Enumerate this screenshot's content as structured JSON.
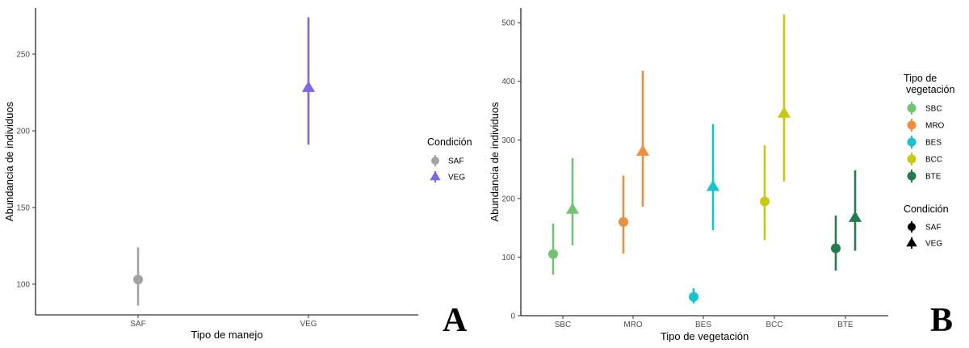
{
  "chart_data": [
    {
      "id": "A",
      "type": "pointrange",
      "panel_label": "A",
      "xlabel": "Tipo de manejo",
      "ylabel": "Abundancia de individuos",
      "categories": [
        "SAF",
        "VEG"
      ],
      "yticks": [
        100,
        150,
        200,
        250
      ],
      "ylim": [
        80,
        280
      ],
      "grid": false,
      "legend_title": "Condición",
      "legend": [
        {
          "label": "SAF",
          "shape": "circle",
          "color": "#a3a3a3"
        },
        {
          "label": "VEG",
          "shape": "triangle",
          "color": "#7b68ee"
        }
      ],
      "series": [
        {
          "name": "SAF",
          "category": "SAF",
          "shape": "circle",
          "color": "#a3a3a3",
          "y": 103,
          "ymin": 86,
          "ymax": 124
        },
        {
          "name": "VEG",
          "category": "VEG",
          "shape": "triangle",
          "color": "#7b68ee",
          "y": 228,
          "ymin": 191,
          "ymax": 274
        }
      ]
    },
    {
      "id": "B",
      "type": "pointrange",
      "panel_label": "B",
      "xlabel": "Tipo de vegetación",
      "ylabel": "Abundancia de individuos",
      "categories": [
        "SBC",
        "MRO",
        "BES",
        "BCC",
        "BTE"
      ],
      "yticks": [
        0,
        100,
        200,
        300,
        400,
        500
      ],
      "ylim": [
        0,
        525
      ],
      "grid": false,
      "legend_title_lines": [
        "Tipo de",
        "vegetación"
      ],
      "legend": [
        {
          "label": "SBC",
          "color": "#72c472"
        },
        {
          "label": "MRO",
          "color": "#ee8f3e"
        },
        {
          "label": "BES",
          "color": "#17c3cf"
        },
        {
          "label": "BCC",
          "color": "#c9c90f"
        },
        {
          "label": "BTE",
          "color": "#237d4f"
        }
      ],
      "legend2_title": "Condición",
      "legend2": [
        {
          "label": "SAF",
          "shape": "circle"
        },
        {
          "label": "VEG",
          "shape": "triangle"
        }
      ],
      "series": [
        {
          "category": "SBC",
          "condition": "SAF",
          "color": "#72c472",
          "y": 105,
          "ymin": 70,
          "ymax": 157
        },
        {
          "category": "SBC",
          "condition": "VEG",
          "color": "#72c472",
          "y": 181,
          "ymin": 120,
          "ymax": 269
        },
        {
          "category": "MRO",
          "condition": "SAF",
          "color": "#ee8f3e",
          "y": 160,
          "ymin": 106,
          "ymax": 239
        },
        {
          "category": "MRO",
          "condition": "VEG",
          "color": "#ee8f3e",
          "y": 280,
          "ymin": 186,
          "ymax": 418
        },
        {
          "category": "BES",
          "condition": "SAF",
          "color": "#17c3cf",
          "y": 32,
          "ymin": 21,
          "ymax": 47
        },
        {
          "category": "BES",
          "condition": "VEG",
          "color": "#17c3cf",
          "y": 220,
          "ymin": 146,
          "ymax": 327
        },
        {
          "category": "BCC",
          "condition": "SAF",
          "color": "#c9c90f",
          "y": 195,
          "ymin": 129,
          "ymax": 291
        },
        {
          "category": "BCC",
          "condition": "VEG",
          "color": "#c9c90f",
          "y": 345,
          "ymin": 229,
          "ymax": 514
        },
        {
          "category": "BTE",
          "condition": "SAF",
          "color": "#237d4f",
          "y": 115,
          "ymin": 77,
          "ymax": 171
        },
        {
          "category": "BTE",
          "condition": "VEG",
          "color": "#237d4f",
          "y": 167,
          "ymin": 111,
          "ymax": 248
        }
      ]
    }
  ]
}
